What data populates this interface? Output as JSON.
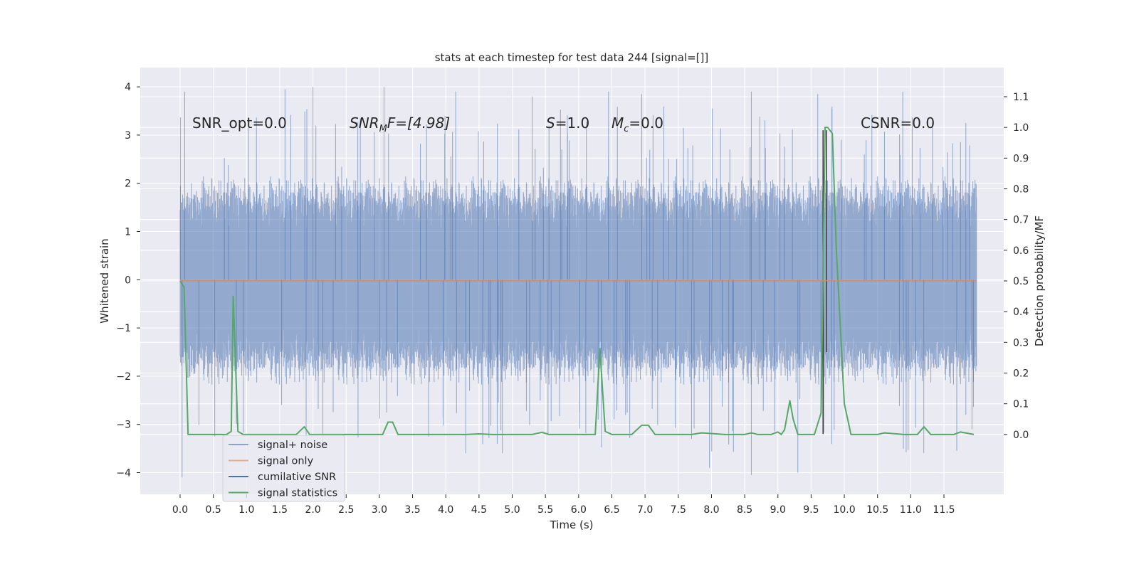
{
  "chart_data": {
    "type": "line",
    "title": "stats at each timestep for test data 244 [signal=[]]",
    "xlabel": "Time (s)",
    "ylabel_left": "Whitened strain",
    "ylabel_right": "Detection probability/MF",
    "xlim": [
      -0.6,
      12.4
    ],
    "ylim_left": [
      -4.45,
      4.4
    ],
    "ylim_right": [
      -0.195,
      1.195
    ],
    "grid": true,
    "legend_placement": "lower-left",
    "x_ticks": [
      "0.0",
      "0.5",
      "1.0",
      "1.5",
      "2.0",
      "2.5",
      "3.0",
      "3.5",
      "4.0",
      "4.5",
      "5.0",
      "5.5",
      "6.0",
      "6.5",
      "7.0",
      "7.5",
      "8.0",
      "8.5",
      "9.0",
      "9.5",
      "10.0",
      "10.5",
      "11.0",
      "11.5"
    ],
    "y_ticks_left": [
      "4",
      "3",
      "2",
      "1",
      "0",
      "−1",
      "−2",
      "−3",
      "−4"
    ],
    "y_ticks_right": [
      "1.1",
      "1.0",
      "0.9",
      "0.8",
      "0.7",
      "0.6",
      "0.5",
      "0.4",
      "0.3",
      "0.2",
      "0.1",
      "0.0"
    ],
    "annotations": {
      "snr_opt": "SNR_opt=0.0",
      "snr_mf_main": "SNR",
      "snr_mf_sub": "M",
      "snr_mf_rest": "F=[4.98]",
      "s_label": "S",
      "s_value": "=1.0",
      "mc_label": "M",
      "mc_sub": "c",
      "mc_value": "=0.0",
      "csnr": "CSNR=0.0"
    },
    "colors": {
      "background": "#eaeaf2",
      "grid": "#ffffff",
      "noise": "#4c72b0",
      "signal": "#dd8452",
      "cumulative": "#4c72b0",
      "statistics": "#55a868",
      "marker": "#3a3a3a"
    },
    "series": [
      {
        "name": "signal+ noise",
        "description": "dense whitened strain trace, mostly between -2.0 and 2.0",
        "x_range": [
          0.0,
          11.99
        ],
        "typical_abs_max": 2.0,
        "peaks": [
          [
            0.07,
            3.9
          ],
          [
            0.03,
            -4.1
          ],
          [
            1.58,
            3.95
          ],
          [
            2.0,
            4.0
          ],
          [
            3.07,
            4.0
          ],
          [
            4.15,
            3.9
          ],
          [
            5.3,
            3.8
          ],
          [
            6.45,
            3.9
          ],
          [
            6.95,
            3.85
          ],
          [
            8.6,
            3.9
          ],
          [
            8.6,
            -4.05
          ],
          [
            9.3,
            -4.0
          ],
          [
            9.6,
            3.85
          ],
          [
            10.88,
            3.9
          ],
          [
            11.83,
            3.25
          ],
          [
            11.83,
            -2.8
          ],
          [
            7.97,
            -3.9
          ],
          [
            4.3,
            -3.6
          ]
        ]
      },
      {
        "name": "signal only",
        "x": [
          0.0,
          11.99
        ],
        "y": [
          -0.02,
          -0.02
        ]
      },
      {
        "name": "cumilative SNR",
        "x": [],
        "y": []
      },
      {
        "name": "signal statistics",
        "axis": "right",
        "x": [
          0.0,
          0.06,
          0.12,
          0.25,
          0.5,
          0.7,
          0.77,
          0.8,
          0.87,
          0.95,
          1.2,
          1.5,
          1.75,
          1.87,
          1.95,
          2.2,
          2.6,
          2.9,
          3.05,
          3.13,
          3.2,
          3.28,
          3.35,
          3.6,
          4.0,
          4.3,
          4.5,
          4.7,
          5.0,
          5.3,
          5.45,
          5.55,
          5.8,
          6.1,
          6.25,
          6.32,
          6.4,
          6.5,
          6.8,
          6.95,
          7.05,
          7.15,
          7.4,
          7.7,
          7.85,
          8.2,
          8.5,
          8.6,
          8.7,
          8.9,
          9.0,
          9.05,
          9.1,
          9.18,
          9.23,
          9.3,
          9.4,
          9.55,
          9.65,
          9.71,
          9.75,
          9.82,
          9.88,
          10.0,
          10.1,
          10.3,
          10.5,
          10.6,
          10.9,
          11.1,
          11.2,
          11.3,
          11.5,
          11.65,
          11.75,
          11.95
        ],
        "y": [
          0.5,
          0.48,
          0.0,
          0.0,
          0.0,
          0.0,
          0.01,
          0.45,
          0.01,
          0.0,
          0.0,
          0.0,
          0.0,
          0.025,
          0.0,
          0.0,
          0.0,
          0.0,
          0.0,
          0.04,
          0.04,
          0.0,
          0.0,
          0.0,
          0.0,
          0.0,
          0.002,
          0.0,
          0.0,
          0.0,
          0.007,
          0.0,
          0.0,
          0.0,
          0.0,
          0.28,
          0.01,
          0.0,
          0.0,
          0.03,
          0.03,
          0.0,
          0.0,
          0.0,
          0.005,
          0.0,
          0.0,
          0.005,
          0.0,
          0.0,
          0.008,
          0.0,
          0.015,
          0.11,
          0.05,
          0.0,
          0.0,
          0.0,
          0.07,
          1.0,
          1.0,
          0.98,
          0.6,
          0.1,
          0.0,
          0.0,
          0.0,
          0.005,
          0.0,
          0.0,
          0.025,
          0.0,
          0.0,
          0.0,
          0.008,
          0.0
        ]
      }
    ],
    "vertical_markers": [
      {
        "x": 9.68,
        "y_top": 3.1,
        "y_bottom": -3.2
      },
      {
        "x": 9.73,
        "y_top": 3.1,
        "y_bottom": -1.5
      }
    ]
  }
}
